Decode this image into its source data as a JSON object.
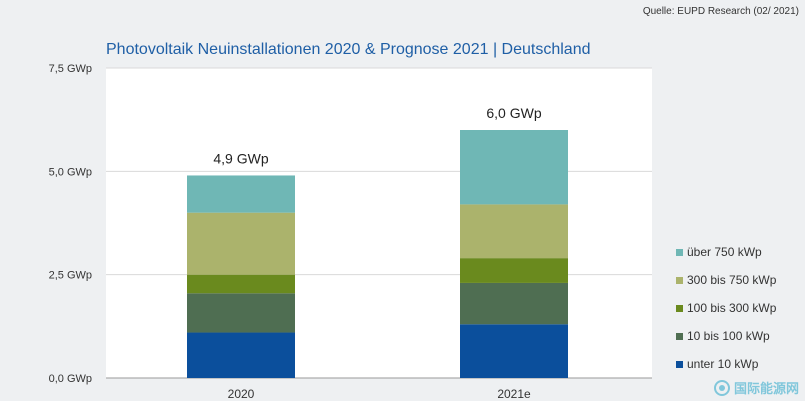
{
  "source": "Quelle: EUPD Research (02/ 2021)",
  "watermark": "国际能源网",
  "chart_data": {
    "type": "bar",
    "stacked": true,
    "title": "Photovoltaik Neuinstallationen 2020 & Prognose 2021 | Deutschland",
    "xlabel": "",
    "ylabel": "",
    "categories": [
      "2020",
      "2021e"
    ],
    "ylim": [
      0,
      7.5
    ],
    "yticks": [
      0,
      2.5,
      5.0,
      7.5
    ],
    "ytick_labels": [
      "0,0 GWp",
      "2,5 GWp",
      "5,0 GWp",
      "7,5 GWp"
    ],
    "totals": [
      4.9,
      6.0
    ],
    "total_labels": [
      "4,9 GWp",
      "6,0 GWp"
    ],
    "grid": true,
    "legend_position": "right",
    "series": [
      {
        "name": "unter 10 kWp",
        "color": "#0b4f9c",
        "values": [
          1.1,
          1.3
        ]
      },
      {
        "name": "10 bis 100 kWp",
        "color": "#4f6e52",
        "values": [
          0.95,
          1.0
        ]
      },
      {
        "name": "100 bis 300 kWp",
        "color": "#6a8a1e",
        "values": [
          0.45,
          0.6
        ]
      },
      {
        "name": "300 bis 750 kWp",
        "color": "#abb36c",
        "values": [
          1.5,
          1.3
        ]
      },
      {
        "name": "über 750 kWp",
        "color": "#6fb7b5",
        "values": [
          0.9,
          1.8
        ]
      }
    ]
  }
}
